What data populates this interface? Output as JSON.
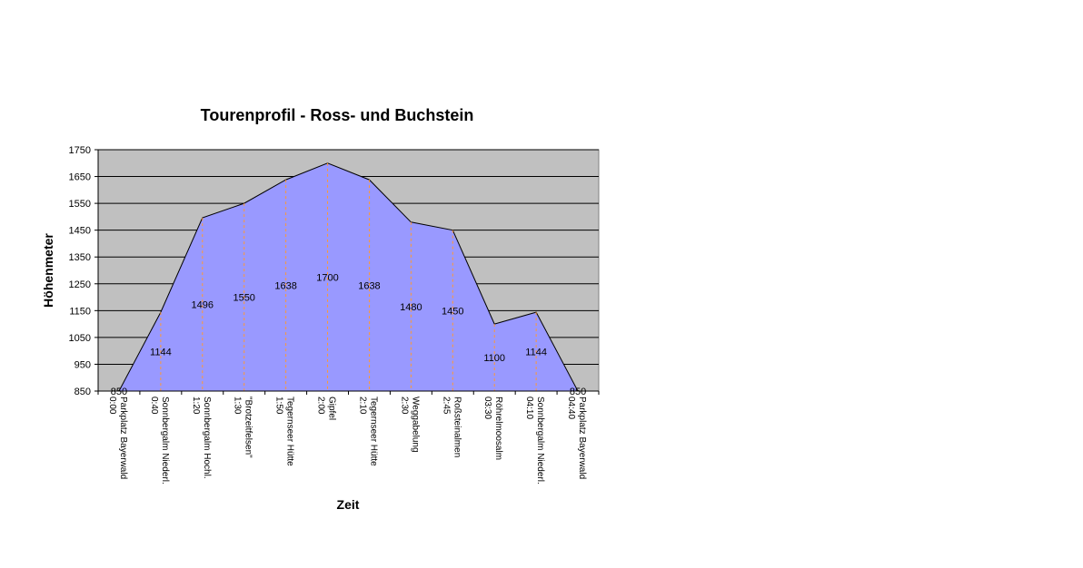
{
  "chart_data": {
    "type": "area",
    "title": "Tourenprofil - Ross- und Buchstein",
    "xlabel": "Zeit",
    "ylabel": "Höhenmeter",
    "ylim": [
      850,
      1750
    ],
    "yticks": [
      850,
      950,
      1050,
      1150,
      1250,
      1350,
      1450,
      1550,
      1650,
      1750
    ],
    "categories": [
      [
        "Parkplatz Bayerwald",
        "0:00"
      ],
      [
        "Sonnbergalm Niederl.",
        "0:40"
      ],
      [
        "Sonnbergalm Hochl.",
        "1:20"
      ],
      [
        "\"Brotzeitfelsen\"",
        "1:30"
      ],
      [
        "Tegernseer Hütte",
        "1:50"
      ],
      [
        "Gipfel",
        "2:00"
      ],
      [
        "Tegernseer Hütte",
        "2:10"
      ],
      [
        "Weggabelung",
        "2:30"
      ],
      [
        "Roßsteinalmen",
        "2:45"
      ],
      [
        "Röhrelmoosalm",
        "03:30"
      ],
      [
        "Sonnbergalm Niederl.",
        "04:10"
      ],
      [
        "Parkplatz Bayerwald",
        "04:40"
      ]
    ],
    "values": [
      850,
      1144,
      1496,
      1550,
      1638,
      1700,
      1638,
      1480,
      1450,
      1100,
      1144,
      850
    ],
    "grid": true,
    "colors": {
      "plot_background": "#c0c0c0",
      "area_fill": "#9999ff",
      "area_stroke": "#000000",
      "gridline": "#000000",
      "dropline": "#ff9933"
    }
  }
}
